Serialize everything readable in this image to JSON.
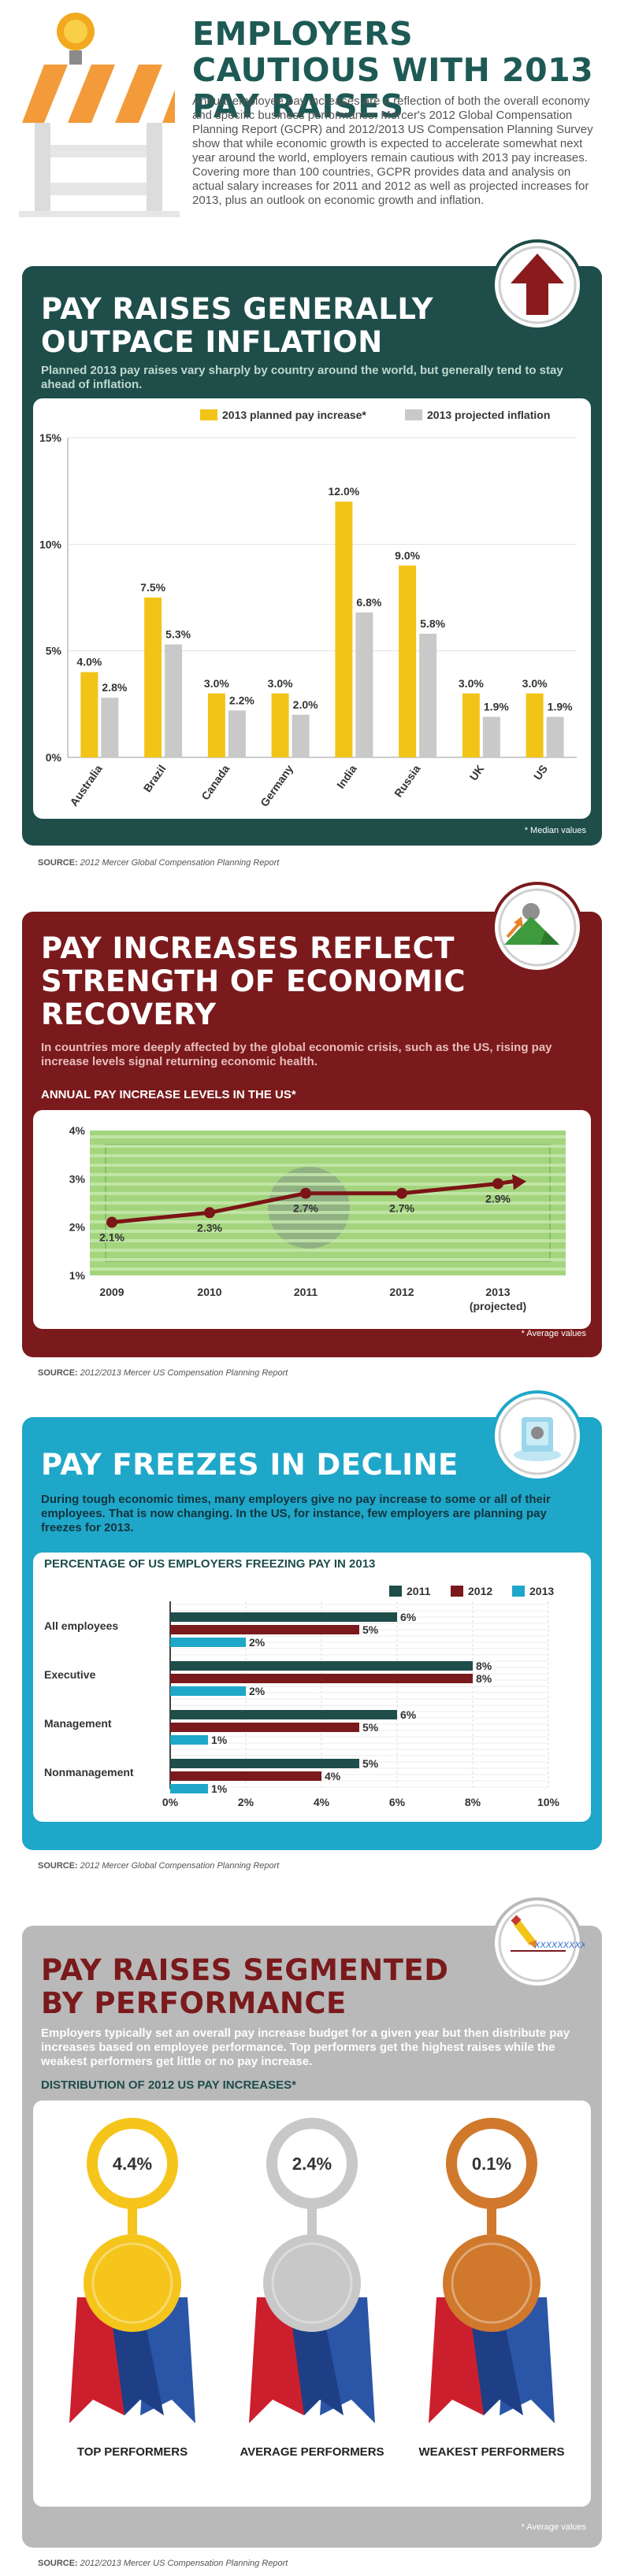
{
  "header": {
    "title": "EMPLOYERS CAUTIOUS WITH 2013 PAY RAISES",
    "intro": "Annual employee pay increases are a reflection of both the overall economy and specific business performance. Mercer's 2012 Global Compensation Planning Report (GCPR) and 2012/2013 US Compensation Planning Survey show that while economic growth is expected to accelerate somewhat next year around the world, employers remain cautious with 2013 pay increases. Covering more than 100 countries, GCPR provides data and analysis on actual salary increases for 2011 and 2012 as well as projected increases for 2013, plus an outlook on economic growth and inflation."
  },
  "section1": {
    "title": "PAY RAISES GENERALLY OUTPACE INFLATION",
    "subtitle": "Planned 2013 pay raises vary sharply by country around the world, but generally tend to stay ahead of inflation.",
    "note": "* Median values",
    "source_label": "SOURCE:",
    "source": "2012 Mercer Global Compensation Planning Report"
  },
  "section2": {
    "title": "PAY INCREASES REFLECT STRENGTH OF ECONOMIC RECOVERY",
    "subtitle": "In countries more deeply affected by the global economic crisis, such as the US, rising pay increase levels signal returning economic health.",
    "chart_title": "ANNUAL PAY INCREASE LEVELS IN THE US*",
    "note": "* Average values",
    "source_label": "SOURCE:",
    "source": "2012/2013 Mercer US Compensation Planning Report"
  },
  "section3": {
    "title": "PAY FREEZES IN DECLINE",
    "subtitle": "During tough economic times, many employers give no pay increase to some or all of their employees. That is now changing. In the US, for instance, few employers are planning pay freezes for 2013.",
    "chart_title": "PERCENTAGE OF US EMPLOYERS FREEZING PAY IN 2013",
    "source_label": "SOURCE:",
    "source": "2012 Mercer Global Compensation Planning Report"
  },
  "section4": {
    "title": "PAY RAISES SEGMENTED BY PERFORMANCE",
    "subtitle": "Employers typically set an overall pay increase budget for a given year but then distribute pay increases based on employee performance. Top performers get the highest raises while the weakest performers get little or no pay increase.",
    "chart_title": "DISTRIBUTION OF 2012 US PAY INCREASES*",
    "note": "* Average values",
    "source_label": "SOURCE:",
    "source": "2012/2013 Mercer US Compensation Planning Report",
    "icon_text": "XXXXXXXXX.X"
  },
  "colors": {
    "teal_dark": "#1e4d4a",
    "maroon": "#7a1a1c",
    "cyan": "#1fa7c9",
    "gray_panel": "#b9b9b9",
    "yellow": "#f2c418",
    "gray_bar": "#c9c9c9",
    "green_plot": "#9fd27a",
    "red_line": "#7b1416"
  },
  "chart_data": [
    {
      "type": "bar",
      "categories": [
        "Australia",
        "Brazil",
        "Canada",
        "Germany",
        "India",
        "Russia",
        "UK",
        "US"
      ],
      "series": [
        {
          "name": "2013 planned pay increase*",
          "values": [
            4.0,
            7.5,
            3.0,
            3.0,
            12.0,
            9.0,
            3.0,
            3.0
          ],
          "labels": [
            "4.0%",
            "7.5%",
            "3.0%",
            "3.0%",
            "12.0%",
            "9.0%",
            "3.0%",
            "3.0%"
          ],
          "color": "#f2c418"
        },
        {
          "name": "2013 projected inflation",
          "values": [
            2.8,
            5.3,
            2.2,
            2.0,
            6.8,
            5.8,
            1.9,
            1.9
          ],
          "labels": [
            "2.8%",
            "5.3%",
            "2.2%",
            "2.0%",
            "6.8%",
            "5.8%",
            "1.9%",
            "1.9%"
          ],
          "color": "#c9c9c9"
        }
      ],
      "yticks": [
        "0%",
        "5%",
        "10%",
        "15%"
      ],
      "ylim": [
        0,
        15
      ]
    },
    {
      "type": "line",
      "x": [
        "2009",
        "2010",
        "2011",
        "2012",
        "2013"
      ],
      "x_sub": [
        "",
        "",
        "",
        "",
        "(projected)"
      ],
      "values": [
        2.1,
        2.3,
        2.7,
        2.7,
        2.9
      ],
      "labels": [
        "2.1%",
        "2.3%",
        "2.7%",
        "2.7%",
        "2.9%"
      ],
      "yticks": [
        "1%",
        "2%",
        "3%",
        "4%"
      ],
      "ylim": [
        1,
        4
      ]
    },
    {
      "type": "bar",
      "orientation": "horizontal",
      "categories": [
        "All employees",
        "Executive",
        "Management",
        "Nonmanagement"
      ],
      "series": [
        {
          "name": "2011",
          "values": [
            6,
            8,
            6,
            5
          ],
          "labels": [
            "6%",
            "8%",
            "6%",
            "5%"
          ],
          "color": "#1e4d4a"
        },
        {
          "name": "2012",
          "values": [
            5,
            8,
            5,
            4
          ],
          "labels": [
            "5%",
            "8%",
            "5%",
            "4%"
          ],
          "color": "#7a1a1c"
        },
        {
          "name": "2013",
          "values": [
            2,
            2,
            1,
            1
          ],
          "labels": [
            "2%",
            "2%",
            "1%",
            "1%"
          ],
          "color": "#1fa7c9"
        }
      ],
      "xticks": [
        "0%",
        "2%",
        "4%",
        "6%",
        "8%",
        "10%"
      ],
      "xlim": [
        0,
        10
      ]
    },
    {
      "type": "table",
      "categories": [
        "TOP PERFORMERS",
        "AVERAGE PERFORMERS",
        "WEAKEST PERFORMERS"
      ],
      "values": [
        4.4,
        2.4,
        0.1
      ],
      "labels": [
        "4.4%",
        "2.4%",
        "0.1%"
      ],
      "medal_colors": [
        "#f5c51c",
        "#c8c8c8",
        "#d0782b"
      ]
    }
  ]
}
